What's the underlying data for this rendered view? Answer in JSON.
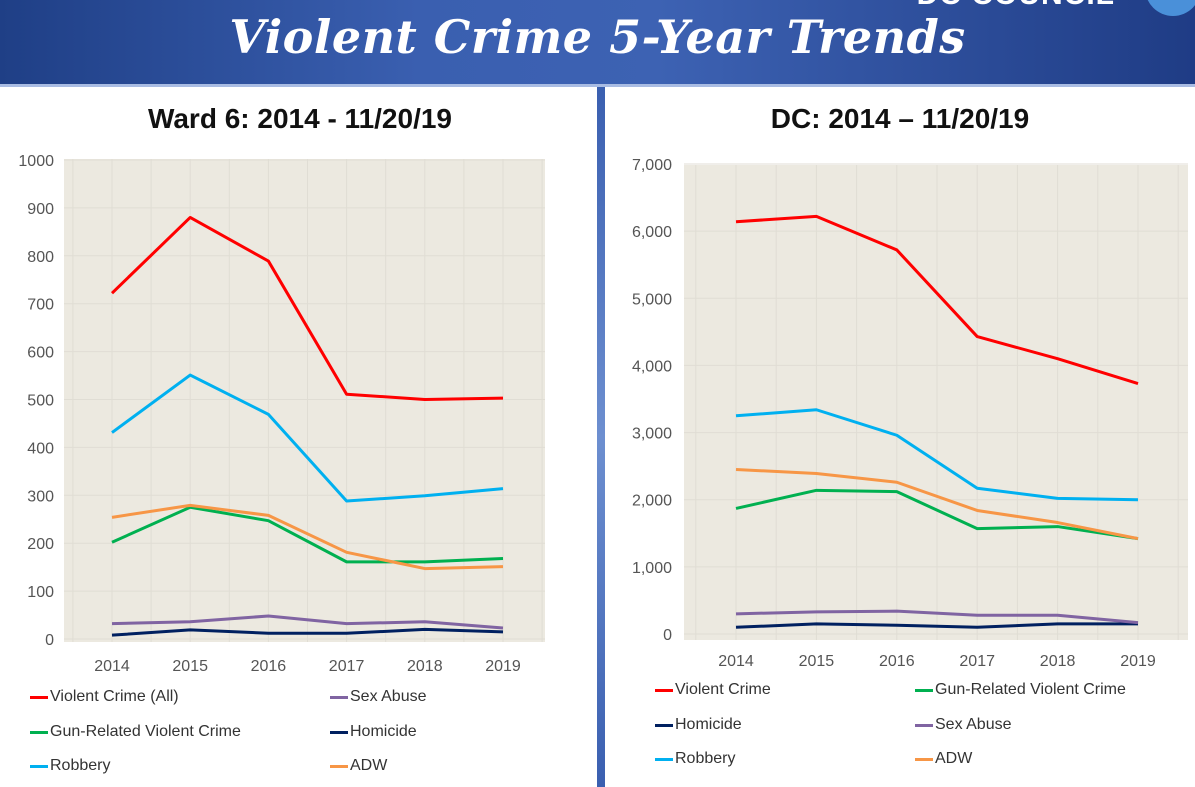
{
  "header": {
    "title": "Violent Crime 5-Year Trends",
    "org": "DC COUNCIL"
  },
  "chart_data": [
    {
      "type": "line",
      "title": "Ward 6: 2014 - 11/20/19",
      "categories": [
        "2014",
        "2015",
        "2016",
        "2017",
        "2018",
        "2019"
      ],
      "ylim": [
        0,
        1000
      ],
      "yticks": [
        "0",
        "100",
        "200",
        "300",
        "400",
        "500",
        "600",
        "700",
        "800",
        "900",
        "1000"
      ],
      "grid": true,
      "legend_position": "bottom",
      "series": [
        {
          "name": "Violent Crime (All)",
          "color": "#ff0000",
          "values": [
            722,
            880,
            789,
            511,
            500,
            503
          ]
        },
        {
          "name": "Sex Abuse",
          "color": "#8064a2",
          "values": [
            32,
            36,
            48,
            32,
            36,
            23
          ]
        },
        {
          "name": "Gun-Related Violent Crime",
          "color": "#00b050",
          "values": [
            202,
            275,
            247,
            161,
            161,
            168
          ]
        },
        {
          "name": "Homicide",
          "color": "#002060",
          "values": [
            8,
            19,
            12,
            12,
            20,
            15
          ]
        },
        {
          "name": "Robbery",
          "color": "#00b0f0",
          "values": [
            431,
            551,
            469,
            288,
            299,
            314
          ]
        },
        {
          "name": "ADW",
          "color": "#f79646",
          "values": [
            254,
            279,
            258,
            181,
            147,
            151
          ]
        }
      ]
    },
    {
      "type": "line",
      "title": "DC: 2014 – 11/20/19",
      "categories": [
        "2014",
        "2015",
        "2016",
        "2017",
        "2018",
        "2019"
      ],
      "ylim": [
        0,
        7000
      ],
      "yticks": [
        "0",
        "1,000",
        "2,000",
        "3,000",
        "4,000",
        "5,000",
        "6,000",
        "7,000"
      ],
      "grid": true,
      "legend_position": "bottom",
      "series": [
        {
          "name": "Violent Crime",
          "color": "#ff0000",
          "values": [
            6140,
            6220,
            5720,
            4430,
            4100,
            3730
          ]
        },
        {
          "name": "Gun-Related Violent Crime",
          "color": "#00b050",
          "values": [
            1870,
            2140,
            2120,
            1570,
            1600,
            1420
          ]
        },
        {
          "name": "Homicide",
          "color": "#002060",
          "values": [
            100,
            150,
            130,
            100,
            150,
            150
          ]
        },
        {
          "name": "Sex Abuse",
          "color": "#8064a2",
          "values": [
            300,
            330,
            340,
            280,
            280,
            170
          ]
        },
        {
          "name": "Robbery",
          "color": "#00b0f0",
          "values": [
            3250,
            3340,
            2960,
            2170,
            2020,
            2000
          ]
        },
        {
          "name": "ADW",
          "color": "#f79646",
          "values": [
            2450,
            2390,
            2260,
            1840,
            1660,
            1420
          ]
        }
      ]
    }
  ]
}
